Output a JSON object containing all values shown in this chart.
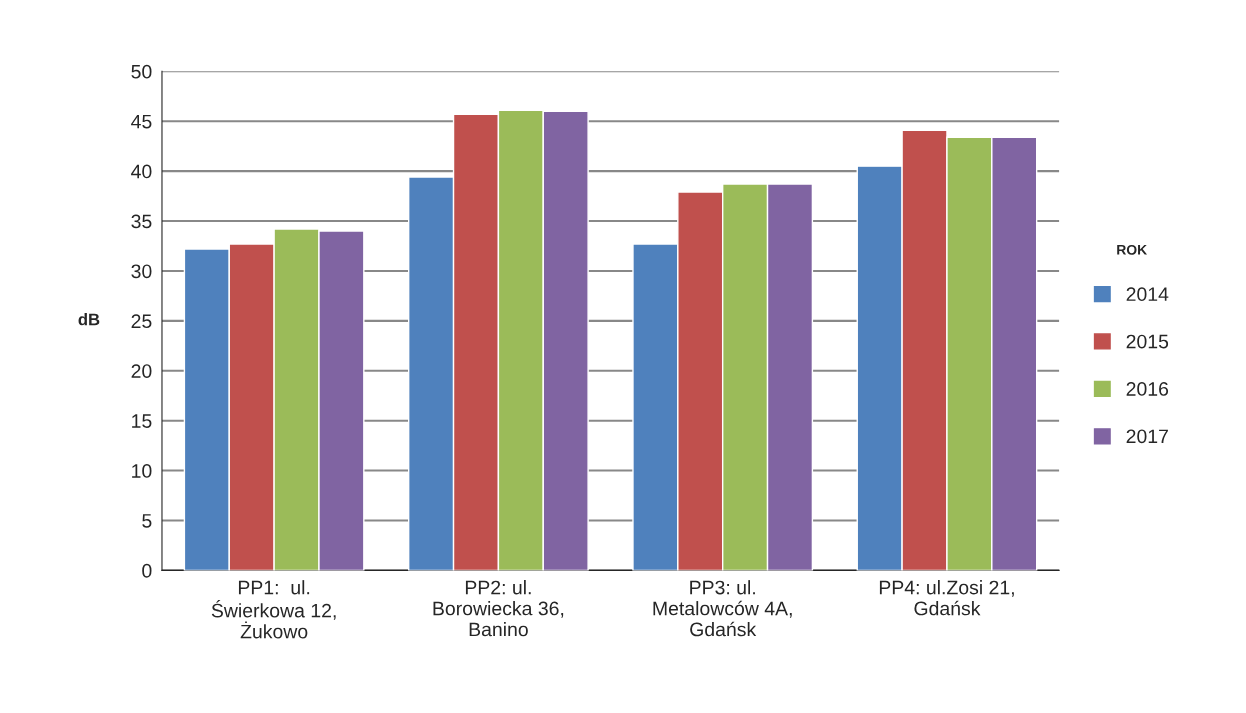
{
  "chart_data": {
    "type": "bar",
    "ylabel": "dB",
    "legend_title": "ROK",
    "legend": "right",
    "categories": [
      "PP1:  ul.\nŚwierkowa 12,\nŻukowo",
      "PP2: ul.\nBorowiecka 36,\nBanino",
      "PP3: ul.\nMetalowców 4A,\nGdańsk",
      "PP4: ul.Zosi 21,\nGdańsk"
    ],
    "series": [
      {
        "name": "2014",
        "color": "#4f81bd",
        "values": [
          32.2,
          39.4,
          32.7,
          40.5
        ]
      },
      {
        "name": "2015",
        "color": "#c0504d",
        "values": [
          32.7,
          45.7,
          37.9,
          44.1
        ]
      },
      {
        "name": "2016",
        "color": "#9bbb59",
        "values": [
          34.2,
          46.1,
          38.7,
          43.4
        ]
      },
      {
        "name": "2017",
        "color": "#8064a2",
        "values": [
          34.0,
          46.0,
          38.7,
          43.4
        ]
      }
    ],
    "ylim": [
      0,
      50
    ],
    "yticks": [
      0,
      5,
      10,
      15,
      20,
      25,
      30,
      35,
      40,
      45,
      50
    ],
    "grid": "y"
  }
}
